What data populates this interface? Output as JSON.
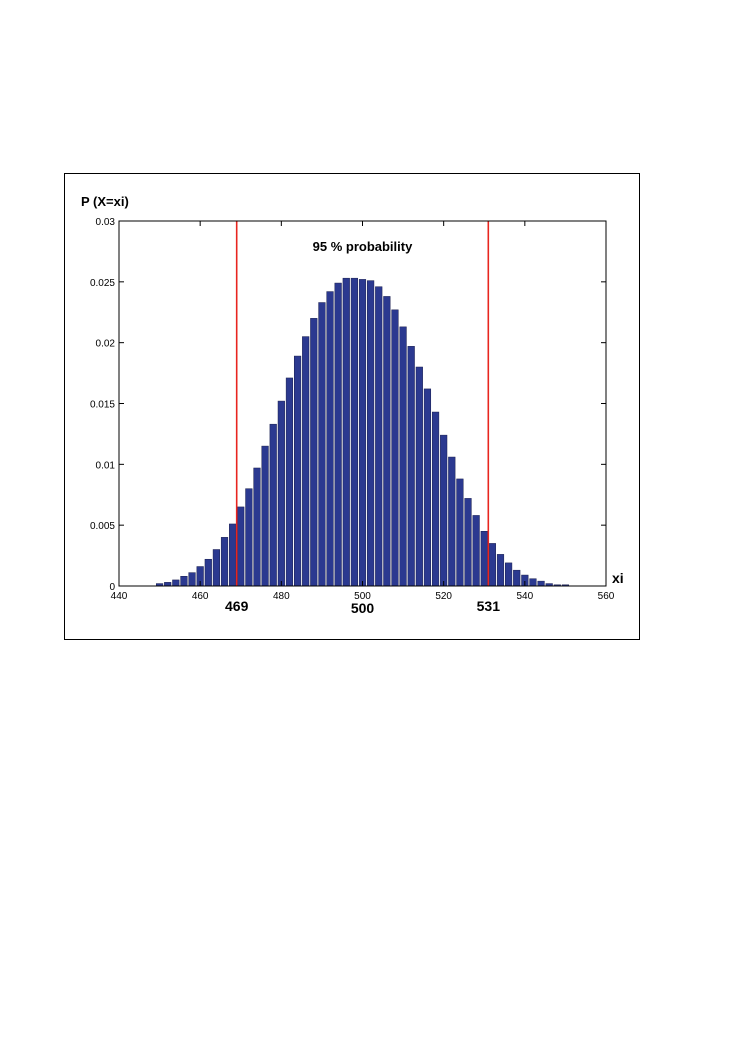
{
  "chart_data": {
    "type": "bar",
    "title": "",
    "ylabel": "P (X=xi)",
    "xlabel": "xi",
    "xlim": [
      440,
      560
    ],
    "ylim": [
      0,
      0.03
    ],
    "xticks": [
      440,
      460,
      480,
      500,
      520,
      540,
      560
    ],
    "xtick_labels": [
      "440",
      "460",
      "480",
      "500",
      "520",
      "540",
      "560"
    ],
    "yticks": [
      0,
      0.005,
      0.01,
      0.015,
      0.02,
      0.025,
      0.03
    ],
    "ytick_labels": [
      "0",
      "0.005",
      "0.01",
      "0.015",
      "0.02",
      "0.025",
      "0.03"
    ],
    "grid": false,
    "bar_color": "#2b3990",
    "line_color": "#e8251f",
    "annotation": "95 % probability",
    "vlines": [
      {
        "x": 469,
        "label": "469"
      },
      {
        "x": 531,
        "label": "531"
      }
    ],
    "center_label": {
      "x": 500,
      "label": "500"
    },
    "x": [
      450,
      451,
      452,
      453,
      454,
      455,
      456,
      457,
      458,
      459,
      460,
      461,
      462,
      463,
      464,
      465,
      466,
      467,
      468,
      469,
      470,
      471,
      472,
      473,
      474,
      475,
      476,
      477,
      478,
      479,
      480,
      481,
      482,
      483,
      484,
      485,
      486,
      487,
      488,
      489,
      490,
      491,
      492,
      493,
      494,
      495,
      496,
      497,
      498,
      499,
      500,
      501,
      502,
      503,
      504,
      505,
      506,
      507,
      508,
      509,
      510,
      511,
      512,
      513,
      514,
      515,
      516,
      517,
      518,
      519,
      520,
      521,
      522,
      523,
      524,
      525,
      526,
      527,
      528,
      529,
      530,
      531,
      532,
      533,
      534,
      535,
      536,
      537,
      538,
      539,
      540,
      541,
      542,
      543,
      544,
      545,
      546,
      547,
      548,
      549,
      550
    ],
    "values": [
      0.0002,
      0.0002,
      0.0003,
      0.0004,
      0.0005,
      0.0006,
      0.0008,
      0.0009,
      0.0011,
      0.0013,
      0.0016,
      0.0019,
      0.0022,
      0.0026,
      0.003,
      0.0035,
      0.004,
      0.0045,
      0.0051,
      0.0058,
      0.0065,
      0.0072,
      0.008,
      0.0088,
      0.0097,
      0.0106,
      0.0115,
      0.0124,
      0.0133,
      0.0143,
      0.0152,
      0.0162,
      0.0171,
      0.018,
      0.0189,
      0.0197,
      0.0205,
      0.0213,
      0.022,
      0.0227,
      0.0233,
      0.0238,
      0.0242,
      0.0246,
      0.0249,
      0.0251,
      0.0253,
      0.0253,
      0.0253,
      0.0252,
      0.0252,
      0.0252,
      0.0251,
      0.0249,
      0.0246,
      0.0242,
      0.0238,
      0.0233,
      0.0227,
      0.022,
      0.0213,
      0.0205,
      0.0197,
      0.0189,
      0.018,
      0.0171,
      0.0162,
      0.0152,
      0.0143,
      0.0133,
      0.0124,
      0.0115,
      0.0106,
      0.0097,
      0.0088,
      0.008,
      0.0072,
      0.0065,
      0.0058,
      0.0051,
      0.0045,
      0.004,
      0.0035,
      0.003,
      0.0026,
      0.0022,
      0.0019,
      0.0016,
      0.0013,
      0.0011,
      0.0009,
      0.0008,
      0.0006,
      0.0005,
      0.0004,
      0.0003,
      0.0002,
      0.0002,
      0.0001,
      0.0001,
      0.0001
    ]
  }
}
